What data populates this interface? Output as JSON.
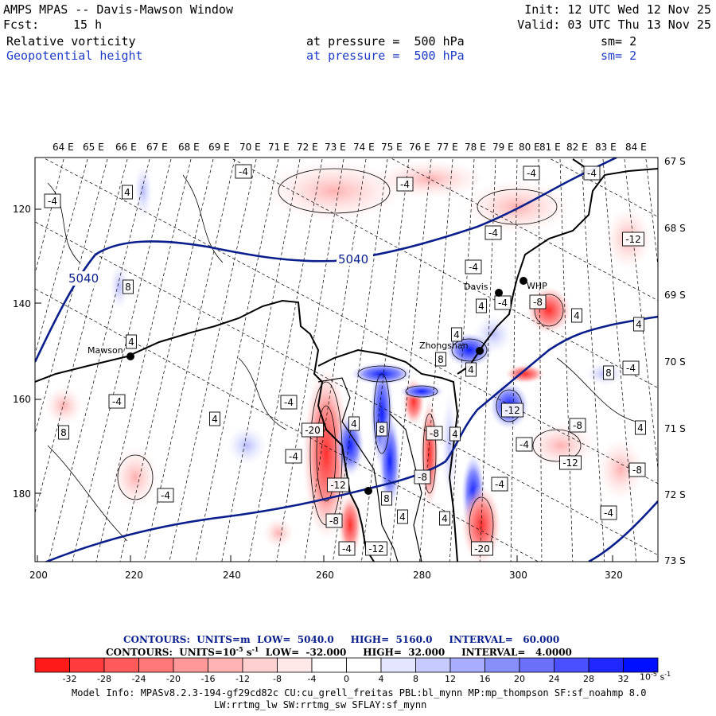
{
  "header": {
    "title": "AMPS MPAS -- Davis-Mawson Window",
    "init": "Init: 12 UTC Wed 12 Nov 25",
    "fcst_label": "Fcst:",
    "fcst_value": "15 h",
    "valid": "Valid: 03 UTC Thu 13 Nov 25",
    "field1": {
      "name": "Relative vorticity",
      "pressure": "at pressure =  500 hPa",
      "sm": "sm= 2"
    },
    "field2": {
      "name": "Geopotential height",
      "pressure": "at pressure =  500 hPa",
      "sm": "sm= 2"
    }
  },
  "map": {
    "top_longitudes": [
      "64 E",
      "65 E",
      "66 E",
      "67 E",
      "68 E",
      "69 E",
      "70 E",
      "71 E",
      "72 E",
      "73 E",
      "74 E",
      "75 E",
      "76 E",
      "77 E",
      "78 E",
      "79 E",
      "80 E",
      "81 E",
      "82 E",
      "83 E",
      "84 E"
    ],
    "right_latitudes": [
      "67 S",
      "68 S",
      "69 S",
      "70 S",
      "71 S",
      "72 S",
      "73 S"
    ],
    "x_ticks": [
      "200",
      "220",
      "240",
      "260",
      "280",
      "300",
      "320"
    ],
    "y_ticks": [
      "120",
      "140",
      "160",
      "180"
    ],
    "height_contour_labels": [
      "5040",
      "5040"
    ],
    "stations": [
      {
        "name": "Mawson"
      },
      {
        "name": "Davis"
      },
      {
        "name": "Zhongshan"
      },
      {
        "name": "WHP"
      }
    ],
    "vorticity_labels": [
      "-4",
      "4",
      "-4",
      "-4",
      "-4",
      "-12",
      "8",
      "-4",
      "-4",
      "4",
      "-8",
      "4",
      "4",
      "4",
      "-4",
      "8",
      "4",
      "8",
      "4",
      "-4",
      "-4",
      "4",
      "-20",
      "4",
      "-12",
      "-8",
      "-4",
      "-8",
      "8",
      "-4",
      "4",
      "-4",
      "-4",
      "-8",
      "4",
      "-12",
      "-12",
      "-8",
      "-4",
      "-20",
      "-4",
      "4",
      "4",
      "8",
      "-8",
      "-12",
      "8",
      "-4",
      "-4"
    ],
    "colors": {
      "height_contour": "#0a1f8c",
      "coastline": "#000000",
      "title_blue": "#1e3cc8"
    }
  },
  "contours": {
    "height_line": {
      "label": "CONTOURS:  UNITS=m  LOW=  5040.0",
      "high": "HIGH=  5160.0",
      "interval": "INTERVAL=   60.000"
    },
    "vort_line": {
      "label": "CONTOURS:  UNITS=10",
      "exp": "-5",
      "unit2": " s",
      "exp2": "-1",
      "low": "  LOW=  -32.000",
      "high": "HIGH=  32.000",
      "interval": "INTERVAL=   4.0000"
    }
  },
  "colorbar": {
    "labels": [
      "-32",
      "-28",
      "-24",
      "-20",
      "-16",
      "-12",
      "-8",
      "-4",
      "0",
      "4",
      "8",
      "12",
      "16",
      "20",
      "24",
      "28",
      "32"
    ],
    "unit": "10",
    "unit_exp1": "-5",
    "unit_s": " s",
    "unit_exp2": "-1",
    "colors": [
      "#ff1a1a",
      "#ff3b3b",
      "#ff5a5a",
      "#ff7878",
      "#ff9898",
      "#ffb4b4",
      "#ffd0d0",
      "#ffe8e8",
      "#ffffff",
      "#ffffff",
      "#e4e6ff",
      "#c6caff",
      "#a8adff",
      "#888ff8",
      "#6a70f8",
      "#4a50ff",
      "#2028ff",
      "#0010ff"
    ]
  },
  "footer": {
    "line1": "Model Info: MPASv8.2.3-194-gf29cd82c CU:cu_grell_freitas PBL:bl_mynn MP:mp_thompson SF:sf_noahmp 8.0",
    "line2": "LW:rrtmg_lw SW:rrtmg_sw SFLAY:sf_mynn"
  }
}
